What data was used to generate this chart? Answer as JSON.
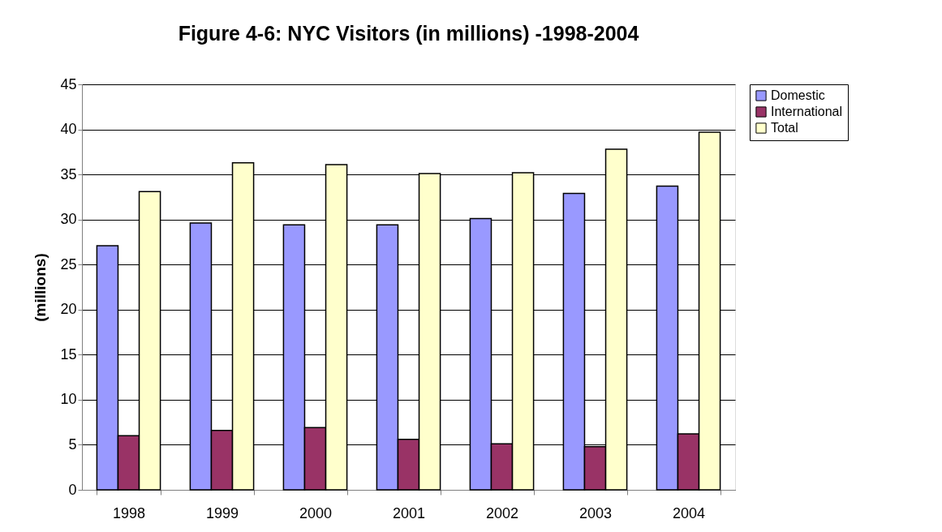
{
  "chart_data": {
    "type": "bar",
    "title": "Figure 4-6: NYC Visitors (in millions) -1998-2004",
    "ylabel": "(millions)",
    "categories": [
      "1998",
      "1999",
      "2000",
      "2001",
      "2002",
      "2003",
      "2004"
    ],
    "series": [
      {
        "name": "Domestic",
        "color": "#9999ff",
        "values": [
          27.1,
          29.6,
          29.4,
          29.4,
          30.1,
          32.9,
          33.7
        ]
      },
      {
        "name": "International",
        "color": "#993366",
        "values": [
          6.0,
          6.6,
          6.9,
          5.6,
          5.1,
          4.8,
          6.2
        ]
      },
      {
        "name": "Total",
        "color": "#ffffcc",
        "values": [
          33.1,
          36.3,
          36.1,
          35.1,
          35.2,
          37.8,
          39.7
        ]
      }
    ],
    "ylim": [
      0,
      45
    ],
    "yticks": [
      0,
      5,
      10,
      15,
      20,
      25,
      30,
      35,
      40,
      45
    ],
    "grid": "y",
    "legend": "right"
  }
}
